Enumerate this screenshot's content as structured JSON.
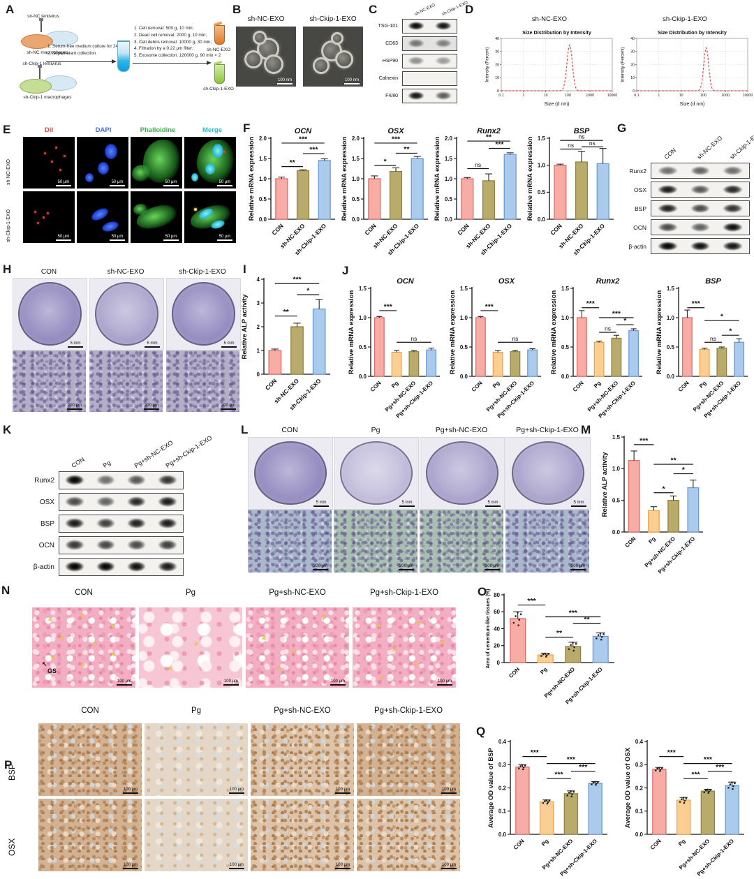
{
  "scales": {
    "nm100": "100 nm",
    "um50": "50 μm",
    "mm5": "5 mm",
    "um200": "200 μm",
    "um100": "100 μm"
  },
  "palette": {
    "pink": {
      "fill": "#F7ACA6",
      "stroke": "#DE6F66"
    },
    "orange": {
      "fill": "#FBCF92",
      "stroke": "#EDA455"
    },
    "olive": {
      "fill": "#B9AB6B",
      "stroke": "#8F8244"
    },
    "blue": {
      "fill": "#ABCBEC",
      "stroke": "#6B9BD8"
    }
  },
  "panels": {
    "A": {
      "label": "A",
      "group1_top": "sh-NC lentivirus",
      "group1_bottom": "sh-NC macrophages",
      "group2_top": "sh-Ckip-1 lentivirus",
      "group2_bottom": "sh-Ckip-1 macrophages",
      "arrow1_steps": [
        "1. Serum-free medium culture for 24 h;",
        "2. Supernatant collection"
      ],
      "arrow2_steps": [
        "1. Cell removal: 500 g, 10 min;",
        "2. Dead cell removal: 2000 g, 10 min;",
        "3. Cell debris removal: 10000 g, 30 min;",
        "4. Filtration by a 0.22 μm filter;",
        "5. Exosome collection: 120000 g, 90 min × 2"
      ],
      "tube1_label": "sh-NC-EXO",
      "tube2_label": "sh-Ckip-1-EXO"
    },
    "B": {
      "label": "B",
      "titles": [
        "sh-NC-EXO",
        "sh-Ckip-1-EXO"
      ]
    },
    "C": {
      "label": "C",
      "lanes": [
        "sh-NC-EXO",
        "sh-Ckip-1-EXO"
      ],
      "rows": [
        {
          "label": "TSG-101",
          "bands": [
            0.97,
            0.93
          ]
        },
        {
          "label": "CD63",
          "bands": [
            0.5,
            0.45
          ],
          "wash": 0.22
        },
        {
          "label": "HSP90",
          "bands": [
            0.42,
            0.36
          ]
        },
        {
          "label": "Calnexin",
          "bands": [
            0,
            0
          ]
        },
        {
          "label": "F4/80",
          "bands": [
            0.92,
            0.62
          ]
        }
      ]
    },
    "D": {
      "label": "D",
      "headings": [
        "sh-NC-EXO",
        "sh-Ckip-1-EXO"
      ]
    },
    "E": {
      "label": "E",
      "col_headers": [
        {
          "text": "DiI",
          "color": "#E34040"
        },
        {
          "text": "DAPI",
          "color": "#3D6FE0"
        },
        {
          "text": "Phalloidine",
          "color": "#3FAE4F"
        },
        {
          "text": "Merge",
          "color": "#2BB9C9"
        }
      ],
      "row_labels": [
        "sh-NC-EXO",
        "sh-Ckip-1-EXO"
      ]
    },
    "F": {
      "label": "F"
    },
    "G": {
      "label": "G",
      "lanes": [
        "CON",
        "sh-NC-EXO",
        "sh-Ckip-1-EXO"
      ],
      "rows": [
        {
          "label": "Runx2",
          "bands": [
            0.55,
            0.6,
            0.55
          ]
        },
        {
          "label": "OSX",
          "bands": [
            0.9,
            0.65,
            0.85
          ]
        },
        {
          "label": "BSP",
          "bands": [
            0.88,
            0.7,
            0.8
          ]
        },
        {
          "label": "OCN",
          "bands": [
            0.7,
            0.6,
            0.95
          ]
        },
        {
          "label": "β-actin",
          "bands": [
            1,
            0.95,
            0.92
          ]
        }
      ]
    },
    "H": {
      "label": "H",
      "col_headers": [
        "CON",
        "sh-NC-EXO",
        "sh-Ckip-1-EXO"
      ]
    },
    "I": {
      "label": "I"
    },
    "J": {
      "label": "J"
    },
    "K": {
      "label": "K",
      "lanes": [
        "CON",
        "Pg",
        "Pg+sh-NC-EXO",
        "Pg+sh-Ckip-1-EXO"
      ],
      "rows": [
        {
          "label": "Runx2",
          "bands": [
            1,
            0.55,
            0.65,
            0.8
          ]
        },
        {
          "label": "OSX",
          "bands": [
            0.7,
            0.6,
            0.85,
            0.9
          ]
        },
        {
          "label": "BSP",
          "bands": [
            0.9,
            0.75,
            0.88,
            0.9
          ]
        },
        {
          "label": "OCN",
          "bands": [
            0.78,
            0.72,
            0.7,
            0.75
          ]
        },
        {
          "label": "β-actin",
          "bands": [
            1,
            1,
            0.95,
            0.9
          ]
        }
      ]
    },
    "L": {
      "label": "L",
      "col_headers": [
        "CON",
        "Pg",
        "Pg+sh-NC-EXO",
        "Pg+sh-Ckip-1-EXO"
      ]
    },
    "M": {
      "label": "M"
    },
    "N": {
      "label": "N",
      "col_headers": [
        "CON",
        "Pg",
        "Pg+sh-NC-EXO",
        "Pg+sh-Ckip-1-EXO"
      ],
      "annotation": "GS"
    },
    "O": {
      "label": "O"
    },
    "P": {
      "label": "P",
      "col_headers": [
        "CON",
        "Pg",
        "Pg+sh-NC-EXO",
        "Pg+sh-Ckip-1-EXO"
      ],
      "row_labels": [
        "BSP",
        "OSX"
      ]
    },
    "Q": {
      "label": "Q"
    }
  },
  "chart_data": {
    "D1": {
      "type": "line",
      "title": "Size Distribution by Intensity",
      "xlabel": "Size (d nm)",
      "ylabel": "Intensity (Percent)",
      "xscale": "log",
      "xlim": [
        0.1,
        10000
      ],
      "xticks": [
        "0.1",
        "1",
        "10",
        "100",
        "1000",
        "10000"
      ],
      "ylim": [
        0,
        40
      ],
      "yticks": [
        0,
        10,
        20,
        30,
        40
      ],
      "peak": {
        "center_nm": 120,
        "intensity": 35,
        "sigma_log": 0.12
      }
    },
    "D2": {
      "type": "line",
      "title": "Size Distribution by Intensity",
      "xlabel": "Size (d nm)",
      "ylabel": "Intensity (Percent)",
      "xscale": "log",
      "xlim": [
        0.1,
        10000
      ],
      "xticks": [
        "0.1",
        "1",
        "10",
        "100",
        "1000",
        "10000"
      ],
      "ylim": [
        0,
        40
      ],
      "yticks": [
        0,
        10,
        20,
        30,
        40
      ],
      "peak": {
        "center_nm": 135,
        "intensity": 33,
        "sigma_log": 0.11
      }
    },
    "F_OCN": {
      "type": "bar",
      "title": "OCN",
      "ylabel": "Relative mRNA expression",
      "ylim": [
        0,
        2
      ],
      "ytick_vals": [
        0,
        0.5,
        1,
        1.5,
        2
      ],
      "ytick_labels": [
        "0.0",
        "0.5",
        "1.0",
        "1.5",
        "2.0"
      ],
      "categories": [
        "CON",
        "sh-NC-EXO",
        "sh-Ckip-1-EXO"
      ],
      "values": [
        1.0,
        1.2,
        1.45
      ],
      "errors": [
        0.04,
        0.02,
        0.04
      ],
      "colors": [
        "pink",
        "olive",
        "blue"
      ],
      "sig": [
        {
          "from": 0,
          "to": 1,
          "label": "**",
          "y": 1.3
        },
        {
          "from": 1,
          "to": 2,
          "label": "***",
          "y": 1.62
        },
        {
          "from": 0,
          "to": 2,
          "label": "***",
          "y": 1.88
        }
      ]
    },
    "F_OSX": {
      "type": "bar",
      "title": "OSX",
      "ylabel": "Relative mRNA expression",
      "ylim": [
        0,
        2
      ],
      "ytick_vals": [
        0,
        0.5,
        1,
        1.5,
        2
      ],
      "ytick_labels": [
        "0.0",
        "0.5",
        "1.0",
        "1.5",
        "2.0"
      ],
      "categories": [
        "CON",
        "sh-NC-EXO",
        "sh-Ckip-1-EXO"
      ],
      "values": [
        1.0,
        1.18,
        1.5
      ],
      "errors": [
        0.07,
        0.09,
        0.05
      ],
      "colors": [
        "pink",
        "olive",
        "blue"
      ],
      "sig": [
        {
          "from": 0,
          "to": 1,
          "label": "*",
          "y": 1.33
        },
        {
          "from": 1,
          "to": 2,
          "label": "**",
          "y": 1.63
        },
        {
          "from": 0,
          "to": 2,
          "label": "***",
          "y": 1.88
        }
      ]
    },
    "F_Runx2": {
      "type": "bar",
      "title": "Runx2",
      "ylabel": "Relative mRNA expression",
      "ylim": [
        0,
        2
      ],
      "ytick_vals": [
        0,
        0.5,
        1,
        1.5,
        2
      ],
      "ytick_labels": [
        "0.0",
        "0.5",
        "1.0",
        "1.5",
        "2.0"
      ],
      "categories": [
        "CON",
        "sh-NC-EXO",
        "sh-Ckip-1-EXO"
      ],
      "values": [
        1.0,
        0.95,
        1.6
      ],
      "errors": [
        0.03,
        0.17,
        0.04
      ],
      "colors": [
        "pink",
        "olive",
        "blue"
      ],
      "sig": [
        {
          "from": 0,
          "to": 1,
          "label": "ns",
          "y": 1.25
        },
        {
          "from": 1,
          "to": 2,
          "label": "***",
          "y": 1.75
        },
        {
          "from": 0,
          "to": 2,
          "label": "**",
          "y": 1.93
        }
      ]
    },
    "F_BSP": {
      "type": "bar",
      "title": "BSP",
      "ylabel": "Relative mRNA expression",
      "ylim": [
        0,
        1.5
      ],
      "ytick_vals": [
        0,
        0.5,
        1,
        1.5
      ],
      "ytick_labels": [
        "0.0",
        "0.5",
        "1.0",
        "1.5"
      ],
      "categories": [
        "CON",
        "sh-NC-EXO",
        "sh-Ckip-1-EXO"
      ],
      "values": [
        1.0,
        1.06,
        1.03
      ],
      "errors": [
        0.02,
        0.2,
        0.28
      ],
      "colors": [
        "pink",
        "olive",
        "blue"
      ],
      "sig": [
        {
          "from": 0,
          "to": 1,
          "label": "ns",
          "y": 1.3
        },
        {
          "from": 1,
          "to": 2,
          "label": "ns",
          "y": 1.34
        },
        {
          "from": 0,
          "to": 2,
          "label": "ns",
          "y": 1.46
        }
      ]
    },
    "I_ALP": {
      "type": "bar",
      "ylabel": "Relative ALP activity",
      "ylim": [
        0,
        4
      ],
      "ytick_vals": [
        0,
        1,
        2,
        3,
        4
      ],
      "ytick_labels": [
        "0",
        "1",
        "2",
        "3",
        "4"
      ],
      "categories": [
        "CON",
        "sh-NC-EXO",
        "sh-Ckip-1-EXO"
      ],
      "values": [
        1.0,
        2.0,
        2.75
      ],
      "errors": [
        0.06,
        0.15,
        0.4
      ],
      "colors": [
        "pink",
        "olive",
        "blue"
      ],
      "sig": [
        {
          "from": 0,
          "to": 1,
          "label": "**",
          "y": 2.45
        },
        {
          "from": 1,
          "to": 2,
          "label": "*",
          "y": 3.35
        },
        {
          "from": 0,
          "to": 2,
          "label": "***",
          "y": 3.82
        }
      ]
    },
    "J_OCN": {
      "type": "bar",
      "title": "OCN",
      "ylabel": "Relative mRNA expression",
      "ylim": [
        0,
        1.5
      ],
      "ytick_vals": [
        0,
        0.5,
        1,
        1.5
      ],
      "ytick_labels": [
        "0.0",
        "0.5",
        "1.0",
        "1.5"
      ],
      "categories": [
        "CON",
        "Pg",
        "Pg+sh-NC-EXO",
        "Pg+sh-Ckip-1-EXO"
      ],
      "values": [
        1.0,
        0.41,
        0.42,
        0.45
      ],
      "errors": [
        0.02,
        0.03,
        0.02,
        0.03
      ],
      "colors": [
        "pink",
        "orange",
        "olive",
        "blue"
      ],
      "sig": [
        {
          "from": 0,
          "to": 1,
          "label": "***",
          "y": 1.12
        },
        {
          "from": 1,
          "to": 3,
          "label": "ns",
          "y": 0.58
        }
      ]
    },
    "J_OSX": {
      "type": "bar",
      "title": "OSX",
      "ylabel": "Relative mRNA expression",
      "ylim": [
        0,
        1.5
      ],
      "ytick_vals": [
        0,
        0.5,
        1,
        1.5
      ],
      "ytick_labels": [
        "0.0",
        "0.5",
        "1.0",
        "1.5"
      ],
      "categories": [
        "CON",
        "Pg",
        "Pg+sh-NC-EXO",
        "Pg+sh-Ckip-1-EXO"
      ],
      "values": [
        1.0,
        0.41,
        0.42,
        0.45
      ],
      "errors": [
        0.02,
        0.03,
        0.02,
        0.02
      ],
      "colors": [
        "pink",
        "orange",
        "olive",
        "blue"
      ],
      "sig": [
        {
          "from": 0,
          "to": 1,
          "label": "***",
          "y": 1.12
        },
        {
          "from": 1,
          "to": 3,
          "label": "ns",
          "y": 0.58
        }
      ]
    },
    "J_Runx2": {
      "type": "bar",
      "title": "Runx2",
      "ylabel": "Relative mRNA expression",
      "ylim": [
        0,
        1.5
      ],
      "ytick_vals": [
        0,
        0.5,
        1,
        1.5
      ],
      "ytick_labels": [
        "0.0",
        "0.5",
        "1.0",
        "1.5"
      ],
      "categories": [
        "CON",
        "Pg",
        "Pg+sh-NC-EXO",
        "Pg+sh-Ckip-1-EXO"
      ],
      "values": [
        1.0,
        0.58,
        0.65,
        0.78
      ],
      "errors": [
        0.12,
        0.02,
        0.05,
        0.03
      ],
      "colors": [
        "pink",
        "orange",
        "olive",
        "blue"
      ],
      "sig": [
        {
          "from": 0,
          "to": 1,
          "label": "***",
          "y": 1.17
        },
        {
          "from": 1,
          "to": 3,
          "label": "***",
          "y": 1.0
        },
        {
          "from": 2,
          "to": 3,
          "label": "*",
          "y": 0.88
        },
        {
          "from": 1,
          "to": 2,
          "label": "ns",
          "y": 0.75
        }
      ]
    },
    "J_BSP": {
      "type": "bar",
      "title": "BSP",
      "ylabel": "Relative mRNA expression",
      "ylim": [
        0,
        1.5
      ],
      "ytick_vals": [
        0,
        0.5,
        1,
        1.5
      ],
      "ytick_labels": [
        "0.0",
        "0.5",
        "1.0",
        "1.5"
      ],
      "categories": [
        "CON",
        "Pg",
        "Pg+sh-NC-EXO",
        "Pg+sh-Ckip-1-EXO"
      ],
      "values": [
        1.0,
        0.46,
        0.48,
        0.58
      ],
      "errors": [
        0.13,
        0.02,
        0.02,
        0.06
      ],
      "colors": [
        "pink",
        "orange",
        "olive",
        "blue"
      ],
      "sig": [
        {
          "from": 0,
          "to": 1,
          "label": "***",
          "y": 1.17
        },
        {
          "from": 1,
          "to": 3,
          "label": "*",
          "y": 0.95
        },
        {
          "from": 2,
          "to": 3,
          "label": "*",
          "y": 0.7
        },
        {
          "from": 1,
          "to": 2,
          "label": "ns",
          "y": 0.58
        }
      ]
    },
    "M_ALP": {
      "type": "bar",
      "ylabel": "Relative ALP activity",
      "ylim": [
        0,
        1.5
      ],
      "ytick_vals": [
        0,
        0.5,
        1,
        1.5
      ],
      "ytick_labels": [
        "0.0",
        "0.5",
        "1.0",
        "1.5"
      ],
      "categories": [
        "CON",
        "Pg",
        "Pg+sh-NC-EXO",
        "Pg+sh-Ckip-1-EXO"
      ],
      "values": [
        1.13,
        0.34,
        0.5,
        0.7
      ],
      "errors": [
        0.15,
        0.06,
        0.07,
        0.12
      ],
      "colors": [
        "pink",
        "orange",
        "olive",
        "blue"
      ],
      "sig": [
        {
          "from": 0,
          "to": 1,
          "label": "***",
          "y": 1.38
        },
        {
          "from": 1,
          "to": 3,
          "label": "**",
          "y": 1.07
        },
        {
          "from": 2,
          "to": 3,
          "label": "*",
          "y": 0.92
        },
        {
          "from": 1,
          "to": 2,
          "label": "*",
          "y": 0.62
        }
      ]
    },
    "O_area": {
      "type": "bar",
      "ylabel": "Area of cementum-like tissues (%)",
      "ylim": [
        0,
        80
      ],
      "ytick_vals": [
        0,
        20,
        40,
        60,
        80
      ],
      "ytick_labels": [
        "0",
        "20",
        "40",
        "60",
        "80"
      ],
      "categories": [
        "CON",
        "Pg",
        "Pg+sh-NC-EXO",
        "Pg+sh-Ckip-1-EXO"
      ],
      "values": [
        52,
        9,
        19,
        31
      ],
      "errors": [
        8,
        2,
        5,
        4
      ],
      "colors": [
        "pink",
        "orange",
        "olive",
        "blue"
      ],
      "dots": true,
      "sig": [
        {
          "from": 0,
          "to": 1,
          "label": "***",
          "y": 68
        },
        {
          "from": 1,
          "to": 3,
          "label": "***",
          "y": 54
        },
        {
          "from": 2,
          "to": 3,
          "label": "**",
          "y": 46
        },
        {
          "from": 1,
          "to": 2,
          "label": "**",
          "y": 30
        }
      ]
    },
    "Q_BSP": {
      "type": "bar",
      "ylabel": "Average OD value of BSP",
      "ylim": [
        0,
        0.4
      ],
      "ytick_vals": [
        0,
        0.1,
        0.2,
        0.3,
        0.4
      ],
      "ytick_labels": [
        "0.0",
        "0.1",
        "0.2",
        "0.3",
        "0.4"
      ],
      "categories": [
        "CON",
        "Pg",
        "Pg+sh-NC-EXO",
        "Pg+sh-Ckip-1-EXO"
      ],
      "values": [
        0.29,
        0.14,
        0.175,
        0.22
      ],
      "errors": [
        0.01,
        0.008,
        0.012,
        0.007
      ],
      "colors": [
        "pink",
        "orange",
        "olive",
        "blue"
      ],
      "dots": true,
      "sig": [
        {
          "from": 0,
          "to": 1,
          "label": "***",
          "y": 0.335
        },
        {
          "from": 1,
          "to": 3,
          "label": "***",
          "y": 0.305
        },
        {
          "from": 2,
          "to": 3,
          "label": "***",
          "y": 0.272
        },
        {
          "from": 1,
          "to": 2,
          "label": "***",
          "y": 0.24
        }
      ]
    },
    "Q_OSX": {
      "type": "bar",
      "ylabel": "Average OD value of OSX",
      "ylim": [
        0,
        0.4
      ],
      "ytick_vals": [
        0,
        0.1,
        0.2,
        0.3,
        0.4
      ],
      "ytick_labels": [
        "0.0",
        "0.1",
        "0.2",
        "0.3",
        "0.4"
      ],
      "categories": [
        "CON",
        "Pg",
        "Pg+sh-NC-EXO",
        "Pg+sh-Ckip-1-EXO"
      ],
      "values": [
        0.28,
        0.147,
        0.186,
        0.21
      ],
      "errors": [
        0.008,
        0.012,
        0.008,
        0.015
      ],
      "colors": [
        "pink",
        "orange",
        "olive",
        "blue"
      ],
      "dots": true,
      "sig": [
        {
          "from": 0,
          "to": 1,
          "label": "***",
          "y": 0.335
        },
        {
          "from": 1,
          "to": 3,
          "label": "***",
          "y": 0.305
        },
        {
          "from": 2,
          "to": 3,
          "label": "***",
          "y": 0.272
        },
        {
          "from": 1,
          "to": 2,
          "label": "***",
          "y": 0.24
        }
      ]
    }
  }
}
